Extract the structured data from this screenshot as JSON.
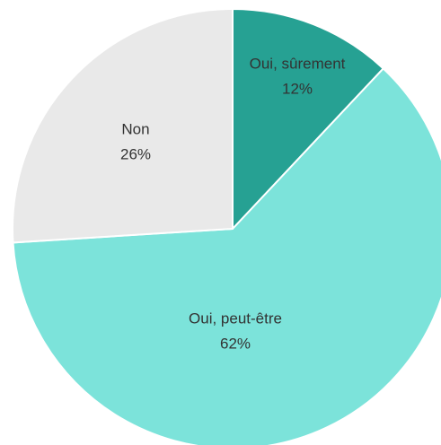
{
  "chart_data": {
    "type": "pie",
    "categories": [
      "Oui, sûrement",
      "Oui, peut-être",
      "Non"
    ],
    "values": [
      12,
      62,
      26
    ],
    "value_labels": [
      "12%",
      "62%",
      "26%"
    ],
    "colors": [
      "#26a193",
      "#7ce3da",
      "#e9e9e9"
    ]
  }
}
